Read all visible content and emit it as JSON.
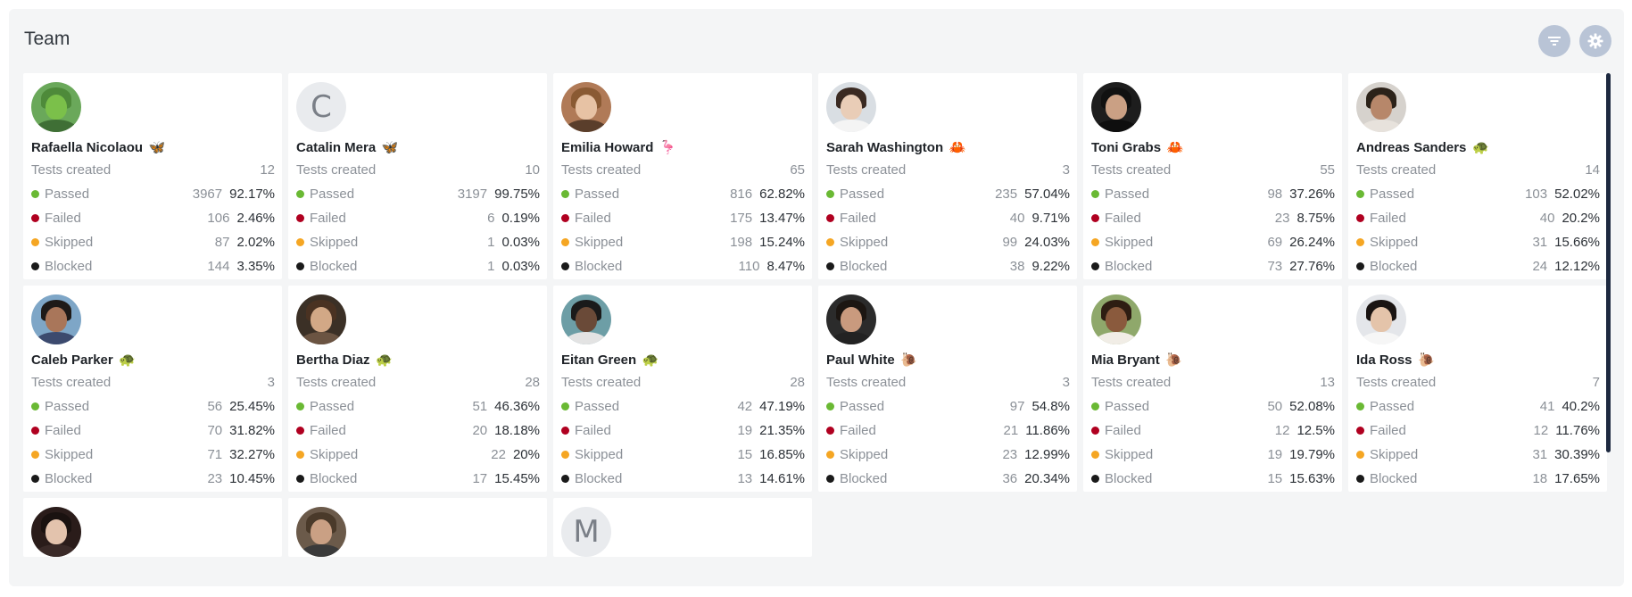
{
  "panel": {
    "title": "Team"
  },
  "header": {
    "filter_icon": "filter-icon",
    "settings_icon": "gear-icon"
  },
  "labels": {
    "tests_created": "Tests created",
    "passed": "Passed",
    "failed": "Failed",
    "skipped": "Skipped",
    "blocked": "Blocked"
  },
  "colors": {
    "passed": "#6ab934",
    "failed": "#b00020",
    "skipped": "#f5a623",
    "blocked": "#1a1a1a",
    "header_button": "#b9c4d6"
  },
  "members": [
    {
      "name": "Rafaella Nicolaou",
      "badge": "🦋",
      "avatar": {
        "type": "photo",
        "bg": "#6aa85a",
        "skin": "#7bc04a",
        "hair": "#4e8a3a",
        "body": "#3f6f35"
      },
      "tests_created": "12",
      "passed": [
        "3967",
        "92.17%"
      ],
      "failed": [
        "106",
        "2.46%"
      ],
      "skipped": [
        "87",
        "2.02%"
      ],
      "blocked": [
        "144",
        "3.35%"
      ]
    },
    {
      "name": "Catalin Mera",
      "badge": "🦋",
      "avatar": {
        "type": "letter",
        "letter": "C"
      },
      "tests_created": "10",
      "passed": [
        "3197",
        "99.75%"
      ],
      "failed": [
        "6",
        "0.19%"
      ],
      "skipped": [
        "1",
        "0.03%"
      ],
      "blocked": [
        "1",
        "0.03%"
      ]
    },
    {
      "name": "Emilia Howard",
      "badge": "🦩",
      "avatar": {
        "type": "photo",
        "bg": "#b07a57",
        "skin": "#e7c2a4",
        "hair": "#8a5a33",
        "body": "#5a3e2b"
      },
      "tests_created": "65",
      "passed": [
        "816",
        "62.82%"
      ],
      "failed": [
        "175",
        "13.47%"
      ],
      "skipped": [
        "198",
        "15.24%"
      ],
      "blocked": [
        "110",
        "8.47%"
      ]
    },
    {
      "name": "Sarah Washington",
      "badge": "🦀",
      "avatar": {
        "type": "photo",
        "bg": "#d9dee3",
        "skin": "#e9cdb7",
        "hair": "#3a2a22",
        "body": "#f4f4f4"
      },
      "tests_created": "3",
      "passed": [
        "235",
        "57.04%"
      ],
      "failed": [
        "40",
        "9.71%"
      ],
      "skipped": [
        "99",
        "24.03%"
      ],
      "blocked": [
        "38",
        "9.22%"
      ]
    },
    {
      "name": "Toni Grabs",
      "badge": "🦀",
      "avatar": {
        "type": "photo",
        "bg": "#1d1d1d",
        "skin": "#caa084",
        "hair": "#111111",
        "body": "#0e0e0e"
      },
      "tests_created": "55",
      "passed": [
        "98",
        "37.26%"
      ],
      "failed": [
        "23",
        "8.75%"
      ],
      "skipped": [
        "69",
        "26.24%"
      ],
      "blocked": [
        "73",
        "27.76%"
      ]
    },
    {
      "name": "Andreas Sanders",
      "badge": "🐢",
      "avatar": {
        "type": "photo",
        "bg": "#d6d2cd",
        "skin": "#b7876a",
        "hair": "#2c2219",
        "body": "#e7e2dc"
      },
      "tests_created": "14",
      "passed": [
        "103",
        "52.02%"
      ],
      "failed": [
        "40",
        "20.2%"
      ],
      "skipped": [
        "31",
        "15.66%"
      ],
      "blocked": [
        "24",
        "12.12%"
      ]
    },
    {
      "name": "Caleb Parker",
      "badge": "🐢",
      "avatar": {
        "type": "photo",
        "bg": "#7ea6c7",
        "skin": "#a9765a",
        "hair": "#1e1a18",
        "body": "#3c4a6e"
      },
      "tests_created": "3",
      "passed": [
        "56",
        "25.45%"
      ],
      "failed": [
        "70",
        "31.82%"
      ],
      "skipped": [
        "71",
        "32.27%"
      ],
      "blocked": [
        "23",
        "10.45%"
      ]
    },
    {
      "name": "Bertha Diaz",
      "badge": "🐢",
      "avatar": {
        "type": "photo",
        "bg": "#3b3026",
        "skin": "#d2a886",
        "hair": "#4a3222",
        "body": "#6b5442"
      },
      "tests_created": "28",
      "passed": [
        "51",
        "46.36%"
      ],
      "failed": [
        "20",
        "18.18%"
      ],
      "skipped": [
        "22",
        "20%"
      ],
      "blocked": [
        "17",
        "15.45%"
      ]
    },
    {
      "name": "Eitan Green",
      "badge": "🐢",
      "avatar": {
        "type": "photo",
        "bg": "#6d9ea6",
        "skin": "#6a4a38",
        "hair": "#1a1a1a",
        "body": "#e3e3e3"
      },
      "tests_created": "28",
      "passed": [
        "42",
        "47.19%"
      ],
      "failed": [
        "19",
        "21.35%"
      ],
      "skipped": [
        "15",
        "16.85%"
      ],
      "blocked": [
        "13",
        "14.61%"
      ]
    },
    {
      "name": "Paul White",
      "badge": "🐌",
      "avatar": {
        "type": "photo",
        "bg": "#2b2b2b",
        "skin": "#c99a7e",
        "hair": "#1c1612",
        "body": "#222222"
      },
      "tests_created": "3",
      "passed": [
        "97",
        "54.8%"
      ],
      "failed": [
        "21",
        "11.86%"
      ],
      "skipped": [
        "23",
        "12.99%"
      ],
      "blocked": [
        "36",
        "20.34%"
      ]
    },
    {
      "name": "Mia Bryant",
      "badge": "🐌",
      "avatar": {
        "type": "photo",
        "bg": "#8fa86b",
        "skin": "#8a5a3d",
        "hair": "#2e1d12",
        "body": "#f1ede6"
      },
      "tests_created": "13",
      "passed": [
        "50",
        "52.08%"
      ],
      "failed": [
        "12",
        "12.5%"
      ],
      "skipped": [
        "19",
        "19.79%"
      ],
      "blocked": [
        "15",
        "15.63%"
      ]
    },
    {
      "name": "Ida Ross",
      "badge": "🐌",
      "avatar": {
        "type": "photo",
        "bg": "#e4e6ea",
        "skin": "#e4c4aa",
        "hair": "#1a1412",
        "body": "#f6f6f6"
      },
      "tests_created": "7",
      "passed": [
        "41",
        "40.2%"
      ],
      "failed": [
        "12",
        "11.76%"
      ],
      "skipped": [
        "31",
        "30.39%"
      ],
      "blocked": [
        "18",
        "17.65%"
      ]
    }
  ],
  "partial_members": [
    {
      "avatar": {
        "type": "photo",
        "bg": "#2a1c1a",
        "skin": "#e3c3ad",
        "hair": "#1a1210",
        "body": "#3a2a28"
      }
    },
    {
      "avatar": {
        "type": "photo",
        "bg": "#6b5a4a",
        "skin": "#caa084",
        "hair": "#4a3a2a",
        "body": "#3a3a3a"
      }
    },
    {
      "avatar": {
        "type": "letter",
        "letter": "M"
      }
    }
  ]
}
